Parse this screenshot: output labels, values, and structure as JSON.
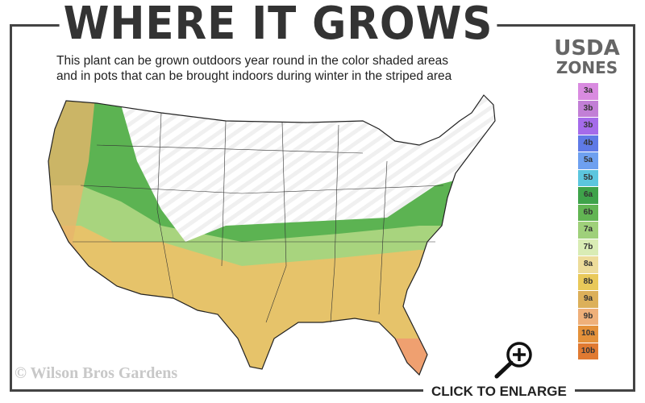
{
  "header": {
    "title": "WHERE IT GROWS",
    "subtitle_line1": "This plant can be grown outdoors year round in the color shaded areas",
    "subtitle_line2": "and in pots that can be brought indoors during winter in the striped area"
  },
  "legend": {
    "title_line1": "USDA",
    "title_line2": "ZONES",
    "zones": [
      {
        "label": "3a",
        "color": "#d98be0"
      },
      {
        "label": "3b",
        "color": "#c27fd6"
      },
      {
        "label": "3b",
        "color": "#a56bea"
      },
      {
        "label": "4b",
        "color": "#5f7ae6"
      },
      {
        "label": "5a",
        "color": "#6ea0f0"
      },
      {
        "label": "5b",
        "color": "#5cc6de"
      },
      {
        "label": "6a",
        "color": "#3ea34a"
      },
      {
        "label": "6b",
        "color": "#62b553"
      },
      {
        "label": "7a",
        "color": "#9fd07a"
      },
      {
        "label": "7b",
        "color": "#d9ecb5"
      },
      {
        "label": "8a",
        "color": "#eddc9a"
      },
      {
        "label": "8b",
        "color": "#e9c95a"
      },
      {
        "label": "9a",
        "color": "#dcb05a"
      },
      {
        "label": "9b",
        "color": "#efb07a"
      },
      {
        "label": "10a",
        "color": "#e4913a"
      },
      {
        "label": "10b",
        "color": "#e07a32"
      }
    ]
  },
  "footer": {
    "copyright": "© Wilson Bros Gardens",
    "enlarge_label": "CLICK TO ENLARGE",
    "enlarge_icon": "magnifier-plus-icon"
  }
}
